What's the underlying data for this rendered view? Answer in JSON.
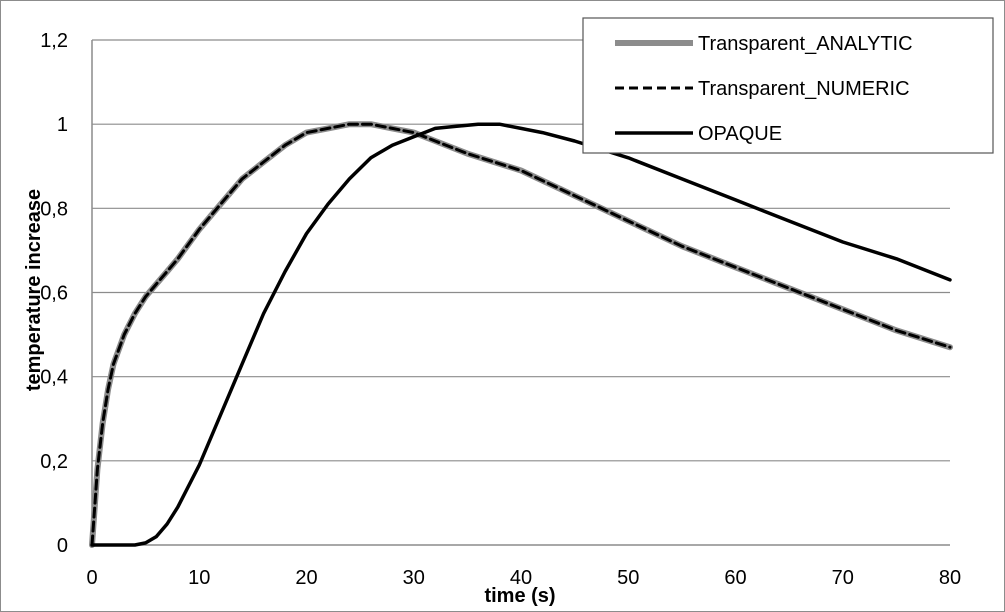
{
  "chart_data": {
    "type": "line",
    "title": "",
    "xlabel": "time (s)",
    "ylabel": "temperature increase",
    "xlim": [
      0,
      80
    ],
    "ylim": [
      0,
      1.2
    ],
    "xticks": [
      0,
      10,
      20,
      30,
      40,
      50,
      60,
      70,
      80
    ],
    "xtick_labels": [
      "0",
      "10",
      "20",
      "30",
      "40",
      "50",
      "60",
      "70",
      "80"
    ],
    "yticks": [
      0,
      0.2,
      0.4,
      0.6,
      0.8,
      1,
      1.2
    ],
    "ytick_labels": [
      "0",
      "0,2",
      "0,4",
      "0,6",
      "0,8",
      "1",
      "1,2"
    ],
    "grid": "horizontal",
    "legend_position": "top-right",
    "series": [
      {
        "name": "Transparent_ANALYTIC",
        "color": "#8c8c8c",
        "style": "solid-thick",
        "x": [
          0,
          0.5,
          1,
          1.5,
          2,
          3,
          4,
          5,
          6,
          7,
          8,
          10,
          12,
          14,
          16,
          18,
          20,
          22,
          24,
          26,
          28,
          30,
          32,
          35,
          40,
          45,
          50,
          55,
          60,
          65,
          70,
          75,
          80
        ],
        "y": [
          0,
          0.18,
          0.29,
          0.37,
          0.43,
          0.5,
          0.55,
          0.59,
          0.62,
          0.65,
          0.68,
          0.75,
          0.81,
          0.87,
          0.91,
          0.95,
          0.98,
          0.99,
          1.0,
          1.0,
          0.99,
          0.98,
          0.96,
          0.93,
          0.89,
          0.83,
          0.77,
          0.71,
          0.66,
          0.61,
          0.56,
          0.51,
          0.47
        ]
      },
      {
        "name": "Transparent_NUMERIC",
        "color": "#000000",
        "style": "dashed",
        "x": [
          0,
          0.5,
          1,
          1.5,
          2,
          3,
          4,
          5,
          6,
          7,
          8,
          10,
          12,
          14,
          16,
          18,
          20,
          22,
          24,
          26,
          28,
          30,
          32,
          35,
          40,
          45,
          50,
          55,
          60,
          65,
          70,
          75,
          80
        ],
        "y": [
          0,
          0.18,
          0.29,
          0.37,
          0.43,
          0.5,
          0.55,
          0.59,
          0.62,
          0.65,
          0.68,
          0.75,
          0.81,
          0.87,
          0.91,
          0.95,
          0.98,
          0.99,
          1.0,
          1.0,
          0.99,
          0.98,
          0.96,
          0.93,
          0.89,
          0.83,
          0.77,
          0.71,
          0.66,
          0.61,
          0.56,
          0.51,
          0.47
        ]
      },
      {
        "name": "OPAQUE",
        "color": "#000000",
        "style": "solid",
        "x": [
          0,
          2,
          4,
          5,
          6,
          7,
          8,
          10,
          12,
          14,
          16,
          18,
          20,
          22,
          24,
          26,
          28,
          30,
          32,
          34,
          36,
          38,
          40,
          42,
          45,
          50,
          55,
          60,
          65,
          70,
          75,
          80
        ],
        "y": [
          0,
          0,
          0,
          0.005,
          0.02,
          0.05,
          0.09,
          0.19,
          0.31,
          0.43,
          0.55,
          0.65,
          0.74,
          0.81,
          0.87,
          0.92,
          0.95,
          0.97,
          0.99,
          0.995,
          1.0,
          1.0,
          0.99,
          0.98,
          0.96,
          0.92,
          0.87,
          0.82,
          0.77,
          0.72,
          0.68,
          0.63
        ]
      }
    ]
  }
}
